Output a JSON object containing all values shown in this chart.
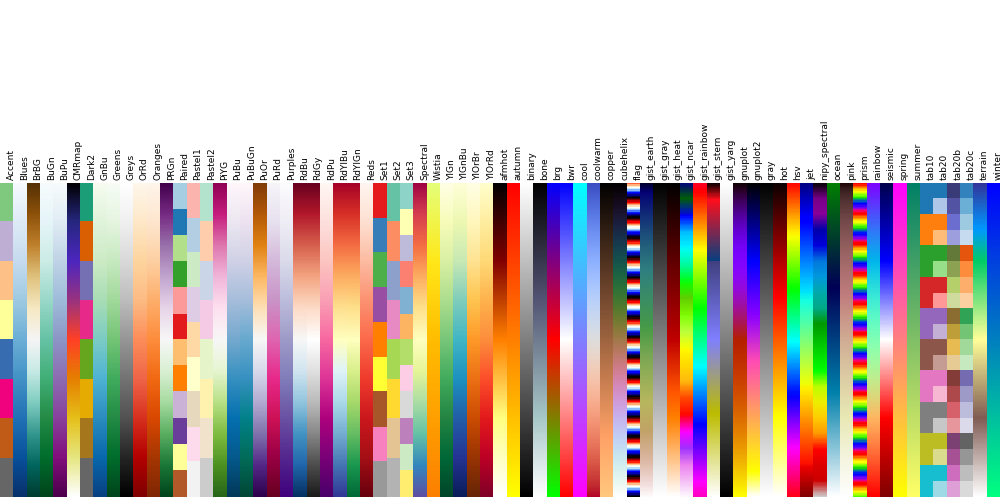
{
  "cmaps": [
    "Accent",
    "Blues",
    "BrBG",
    "BuGn",
    "BuPu",
    "CMRmap",
    "Dark2",
    "GnBu",
    "Greens",
    "Greys",
    "OrRd",
    "Oranges",
    "PRGn",
    "Paired",
    "Pastel1",
    "Pastel2",
    "PiYG",
    "PuBu",
    "PuBuGn",
    "PuOr",
    "PuRd",
    "Purples",
    "RdBu",
    "RdGy",
    "RdPu",
    "RdYlBu",
    "RdYlGn",
    "Reds",
    "Set1",
    "Set2",
    "Set3",
    "Spectral",
    "Wistia",
    "YlGn",
    "YlGnBu",
    "YlOrBr",
    "YlOrRd",
    "afmhot",
    "autumn",
    "binary",
    "bone",
    "brg",
    "bwr",
    "cool",
    "coolwarm",
    "copper",
    "cubehelix",
    "flag",
    "gist_earth",
    "gist_gray",
    "gist_heat",
    "gist_ncar",
    "gist_rainbow",
    "gist_stern",
    "gist_yarg",
    "gnuplot",
    "gnuplot2",
    "gray",
    "hot",
    "hsv",
    "jet",
    "nipy_spectral",
    "ocean",
    "pink",
    "prism",
    "rainbow",
    "seismic",
    "spring",
    "summer",
    "tab10",
    "tab20",
    "tab20b",
    "tab20c",
    "terrain",
    "winter"
  ],
  "n_colors": 256,
  "fig_width": 10.0,
  "fig_height": 5.0,
  "label_fontsize": 6.5,
  "dpi": 100
}
